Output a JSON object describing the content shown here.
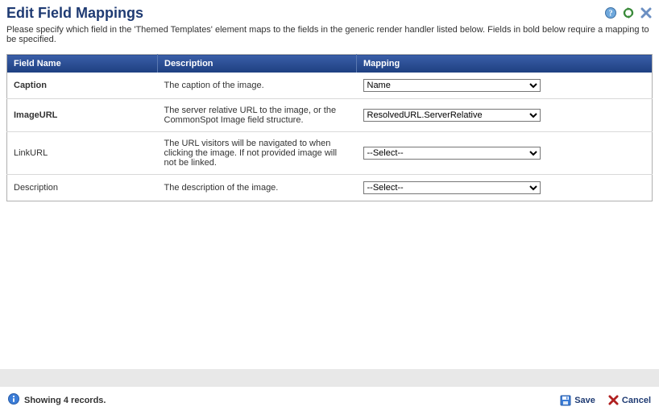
{
  "colors": {
    "title": "#1f3b73",
    "header_gradient_top": "#3a5ea8",
    "header_gradient_bottom": "#1d3f80",
    "row_border": "#d9d9d9",
    "gray_bar": "#e8e8e8",
    "link": "#1f3b73",
    "help_icon_fill": "#6fa8dc",
    "help_icon_text": "#ffffff",
    "refresh_icon": "#3a8a3a",
    "close_icon": "#6b8fc2",
    "info_icon_bg": "#3b7dd8",
    "info_icon_text": "#ffffff",
    "save_icon": "#3b7dd8",
    "cancel_icon": "#b02020"
  },
  "title": "Edit Field Mappings",
  "instructions": "Please specify which field in the 'Themed Templates' element maps to the fields in the generic render handler listed below. Fields in bold below require a mapping to be specified.",
  "columns": {
    "field_name": "Field Name",
    "description": "Description",
    "mapping": "Mapping"
  },
  "select_placeholder": "--Select--",
  "rows": [
    {
      "name": "Caption",
      "required": true,
      "description": "The caption of the image.",
      "value": "Name"
    },
    {
      "name": "ImageURL",
      "required": true,
      "description": "The server relative URL to the image, or the CommonSpot Image field structure.",
      "value": "ResolvedURL.ServerRelative"
    },
    {
      "name": "LinkURL",
      "required": false,
      "description": "The URL visitors will be navigated to when clicking the image. If not provided image will not be linked.",
      "value": "--Select--"
    },
    {
      "name": "Description",
      "required": false,
      "description": "The description of the image.",
      "value": "--Select--"
    }
  ],
  "footer": {
    "records": "Showing 4 records.",
    "save": "Save",
    "cancel": "Cancel"
  },
  "mapping_options": [
    "--Select--",
    "Name",
    "ResolvedURL.ServerRelative"
  ]
}
